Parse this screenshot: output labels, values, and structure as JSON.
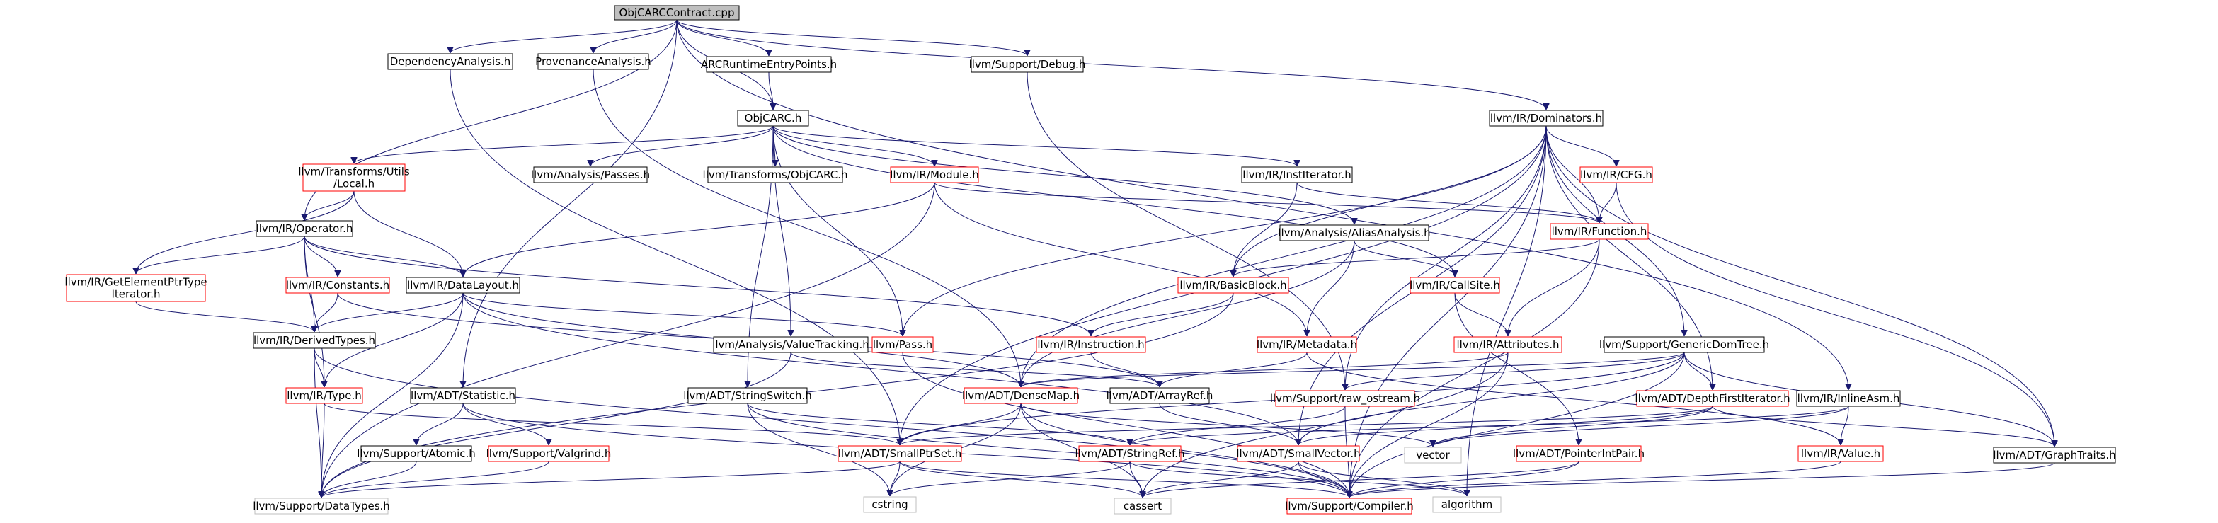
{
  "graph": {
    "nodes": [
      {
        "id": "root",
        "label": "ObjCARCContract.cpp",
        "style": "root"
      },
      {
        "id": "depanalysis",
        "label": "DependencyAnalysis.h",
        "style": "black"
      },
      {
        "id": "provanalysis",
        "label": "ProvenanceAnalysis.h",
        "style": "black"
      },
      {
        "id": "arcrt",
        "label": "ARCRuntimeEntryPoints.h",
        "style": "black"
      },
      {
        "id": "objcarch",
        "label": "ObjCARC.h",
        "style": "black"
      },
      {
        "id": "debug",
        "label": "llvm/Support/Debug.h",
        "style": "black"
      },
      {
        "id": "dominators",
        "label": "llvm/IR/Dominators.h",
        "style": "black"
      },
      {
        "id": "localutils",
        "label": "llvm/Transforms/Utils\n/Local.h",
        "style": "red"
      },
      {
        "id": "passes",
        "label": "llvm/Analysis/Passes.h",
        "style": "black"
      },
      {
        "id": "tobjcarc",
        "label": "llvm/Transforms/ObjCARC.h",
        "style": "black"
      },
      {
        "id": "module",
        "label": "llvm/IR/Module.h",
        "style": "red"
      },
      {
        "id": "institer",
        "label": "llvm/IR/InstIterator.h",
        "style": "black"
      },
      {
        "id": "cfg",
        "label": "llvm/IR/CFG.h",
        "style": "red"
      },
      {
        "id": "operator",
        "label": "llvm/IR/Operator.h",
        "style": "black"
      },
      {
        "id": "aliasanalysis",
        "label": "llvm/Analysis/AliasAnalysis.h",
        "style": "black"
      },
      {
        "id": "function",
        "label": "llvm/IR/Function.h",
        "style": "red"
      },
      {
        "id": "gep",
        "label": "llvm/IR/GetElementPtrType\nIterator.h",
        "style": "red"
      },
      {
        "id": "constants",
        "label": "llvm/IR/Constants.h",
        "style": "red"
      },
      {
        "id": "datalayout",
        "label": "llvm/IR/DataLayout.h",
        "style": "black"
      },
      {
        "id": "basicblock",
        "label": "llvm/IR/BasicBlock.h",
        "style": "red"
      },
      {
        "id": "callsite",
        "label": "llvm/IR/CallSite.h",
        "style": "red"
      },
      {
        "id": "derivedtypes",
        "label": "llvm/IR/DerivedTypes.h",
        "style": "black"
      },
      {
        "id": "valuetracking",
        "label": "llvm/Analysis/ValueTracking.h",
        "style": "black"
      },
      {
        "id": "pass",
        "label": "llvm/Pass.h",
        "style": "red"
      },
      {
        "id": "instruction",
        "label": "llvm/IR/Instruction.h",
        "style": "red"
      },
      {
        "id": "metadata",
        "label": "llvm/IR/Metadata.h",
        "style": "red"
      },
      {
        "id": "attributes",
        "label": "llvm/IR/Attributes.h",
        "style": "red"
      },
      {
        "id": "gendomtree",
        "label": "llvm/Support/GenericDomTree.h",
        "style": "black"
      },
      {
        "id": "type",
        "label": "llvm/IR/Type.h",
        "style": "red"
      },
      {
        "id": "statistic",
        "label": "llvm/ADT/Statistic.h",
        "style": "black"
      },
      {
        "id": "stringswitch",
        "label": "llvm/ADT/StringSwitch.h",
        "style": "black"
      },
      {
        "id": "densemap",
        "label": "llvm/ADT/DenseMap.h",
        "style": "red"
      },
      {
        "id": "arrayref",
        "label": "llvm/ADT/ArrayRef.h",
        "style": "black"
      },
      {
        "id": "rawostream",
        "label": "llvm/Support/raw_ostream.h",
        "style": "red"
      },
      {
        "id": "dfiter",
        "label": "llvm/ADT/DepthFirstIterator.h",
        "style": "red"
      },
      {
        "id": "inlineasm",
        "label": "llvm/IR/InlineAsm.h",
        "style": "black"
      },
      {
        "id": "atomic",
        "label": "llvm/Support/Atomic.h",
        "style": "black"
      },
      {
        "id": "valgrind",
        "label": "llvm/Support/Valgrind.h",
        "style": "red"
      },
      {
        "id": "smallptrset",
        "label": "llvm/ADT/SmallPtrSet.h",
        "style": "red"
      },
      {
        "id": "stringref",
        "label": "llvm/ADT/StringRef.h",
        "style": "red"
      },
      {
        "id": "smallvector",
        "label": "llvm/ADT/SmallVector.h",
        "style": "red"
      },
      {
        "id": "vector",
        "label": "vector",
        "style": "gray"
      },
      {
        "id": "pointerintpair",
        "label": "llvm/ADT/PointerIntPair.h",
        "style": "red"
      },
      {
        "id": "value",
        "label": "llvm/IR/Value.h",
        "style": "red"
      },
      {
        "id": "graphtraits",
        "label": "llvm/ADT/GraphTraits.h",
        "style": "black"
      },
      {
        "id": "datatypes",
        "label": "llvm/Support/DataTypes.h",
        "style": "gray"
      },
      {
        "id": "cstring",
        "label": "cstring",
        "style": "gray"
      },
      {
        "id": "cassert",
        "label": "cassert",
        "style": "gray"
      },
      {
        "id": "compiler",
        "label": "llvm/Support/Compiler.h",
        "style": "red"
      },
      {
        "id": "algorithm",
        "label": "algorithm",
        "style": "gray"
      }
    ],
    "edges": [
      [
        "root",
        "depanalysis"
      ],
      [
        "root",
        "provanalysis"
      ],
      [
        "root",
        "arcrt"
      ],
      [
        "root",
        "objcarch"
      ],
      [
        "root",
        "debug"
      ],
      [
        "root",
        "dominators"
      ],
      [
        "root",
        "operator"
      ],
      [
        "root",
        "statistic"
      ],
      [
        "root",
        "inlineasm"
      ],
      [
        "depanalysis",
        "smallptrset"
      ],
      [
        "provanalysis",
        "densemap"
      ],
      [
        "arcrt",
        "objcarch"
      ],
      [
        "debug",
        "rawostream"
      ],
      [
        "objcarch",
        "localutils"
      ],
      [
        "objcarch",
        "passes"
      ],
      [
        "objcarch",
        "tobjcarc"
      ],
      [
        "objcarch",
        "module"
      ],
      [
        "objcarch",
        "institer"
      ],
      [
        "objcarch",
        "aliasanalysis"
      ],
      [
        "objcarch",
        "valuetracking"
      ],
      [
        "objcarch",
        "pass"
      ],
      [
        "objcarch",
        "callsite"
      ],
      [
        "objcarch",
        "stringswitch"
      ],
      [
        "dominators",
        "function"
      ],
      [
        "dominators",
        "basicblock"
      ],
      [
        "dominators",
        "cfg"
      ],
      [
        "dominators",
        "gendomtree"
      ],
      [
        "dominators",
        "densemap"
      ],
      [
        "dominators",
        "pass"
      ],
      [
        "dominators",
        "smallptrset"
      ],
      [
        "dominators",
        "smallvector"
      ],
      [
        "dominators",
        "rawostream"
      ],
      [
        "dominators",
        "dfiter"
      ],
      [
        "dominators",
        "graphtraits"
      ],
      [
        "dominators",
        "compiler"
      ],
      [
        "dominators",
        "algorithm"
      ],
      [
        "localutils",
        "operator"
      ],
      [
        "localutils",
        "datalayout"
      ],
      [
        "localutils",
        "gep"
      ],
      [
        "module",
        "function"
      ],
      [
        "module",
        "metadata"
      ],
      [
        "module",
        "datalayout"
      ],
      [
        "module",
        "datatypes"
      ],
      [
        "institer",
        "function"
      ],
      [
        "institer",
        "basicblock"
      ],
      [
        "cfg",
        "function"
      ],
      [
        "cfg",
        "graphtraits"
      ],
      [
        "operator",
        "gep"
      ],
      [
        "operator",
        "constants"
      ],
      [
        "operator",
        "datalayout"
      ],
      [
        "operator",
        "derivedtypes"
      ],
      [
        "operator",
        "instruction"
      ],
      [
        "operator",
        "type"
      ],
      [
        "aliasanalysis",
        "callsite"
      ],
      [
        "aliasanalysis",
        "metadata"
      ],
      [
        "aliasanalysis",
        "densemap"
      ],
      [
        "function",
        "basicblock"
      ],
      [
        "function",
        "attributes"
      ],
      [
        "function",
        "compiler"
      ],
      [
        "gep",
        "derivedtypes"
      ],
      [
        "constants",
        "derivedtypes"
      ],
      [
        "constants",
        "arrayref"
      ],
      [
        "datalayout",
        "derivedtypes"
      ],
      [
        "datalayout",
        "type"
      ],
      [
        "datalayout",
        "pass"
      ],
      [
        "datalayout",
        "densemap"
      ],
      [
        "datalayout",
        "smallvector"
      ],
      [
        "datalayout",
        "datatypes"
      ],
      [
        "basicblock",
        "instruction"
      ],
      [
        "basicblock",
        "datatypes"
      ],
      [
        "callsite",
        "attributes"
      ],
      [
        "callsite",
        "pointerintpair"
      ],
      [
        "derivedtypes",
        "type"
      ],
      [
        "derivedtypes",
        "datatypes"
      ],
      [
        "derivedtypes",
        "compiler"
      ],
      [
        "valuetracking",
        "arrayref"
      ],
      [
        "valuetracking",
        "datatypes"
      ],
      [
        "pass",
        "compiler"
      ],
      [
        "instruction",
        "arrayref"
      ],
      [
        "metadata",
        "arrayref"
      ],
      [
        "metadata",
        "value"
      ],
      [
        "attributes",
        "densemap"
      ],
      [
        "attributes",
        "compiler"
      ],
      [
        "attributes",
        "cassert"
      ],
      [
        "gendomtree",
        "densemap"
      ],
      [
        "gendomtree",
        "dfiter"
      ],
      [
        "gendomtree",
        "graphtraits"
      ],
      [
        "gendomtree",
        "smallptrset"
      ],
      [
        "gendomtree",
        "smallvector"
      ],
      [
        "gendomtree",
        "rawostream"
      ],
      [
        "gendomtree",
        "compiler"
      ],
      [
        "type",
        "smallptrset"
      ],
      [
        "type",
        "datatypes"
      ],
      [
        "statistic",
        "atomic"
      ],
      [
        "statistic",
        "valgrind"
      ],
      [
        "statistic",
        "compiler"
      ],
      [
        "stringswitch",
        "stringref"
      ],
      [
        "stringswitch",
        "cstring"
      ],
      [
        "stringswitch",
        "compiler"
      ],
      [
        "densemap",
        "smallptrset"
      ],
      [
        "densemap",
        "cassert"
      ],
      [
        "densemap",
        "cstring"
      ],
      [
        "densemap",
        "compiler"
      ],
      [
        "densemap",
        "vector"
      ],
      [
        "arrayref",
        "smallvector"
      ],
      [
        "rawostream",
        "stringref"
      ],
      [
        "rawostream",
        "compiler"
      ],
      [
        "dfiter",
        "smallptrset"
      ],
      [
        "dfiter",
        "smallvector"
      ],
      [
        "dfiter",
        "graphtraits"
      ],
      [
        "dfiter",
        "vector"
      ],
      [
        "inlineasm",
        "value"
      ],
      [
        "inlineasm",
        "stringref"
      ],
      [
        "inlineasm",
        "vector"
      ],
      [
        "atomic",
        "datatypes"
      ],
      [
        "valgrind",
        "datatypes"
      ],
      [
        "smallptrset",
        "datatypes"
      ],
      [
        "smallptrset",
        "compiler"
      ],
      [
        "smallptrset",
        "cstring"
      ],
      [
        "smallptrset",
        "cassert"
      ],
      [
        "stringref",
        "cstring"
      ],
      [
        "stringref",
        "cassert"
      ],
      [
        "stringref",
        "algorithm"
      ],
      [
        "smallvector",
        "compiler"
      ],
      [
        "smallvector",
        "cassert"
      ],
      [
        "smallvector",
        "algorithm"
      ],
      [
        "pointerintpair",
        "compiler"
      ],
      [
        "pointerintpair",
        "cassert"
      ],
      [
        "value",
        "compiler"
      ],
      [
        "graphtraits",
        "compiler"
      ]
    ]
  }
}
